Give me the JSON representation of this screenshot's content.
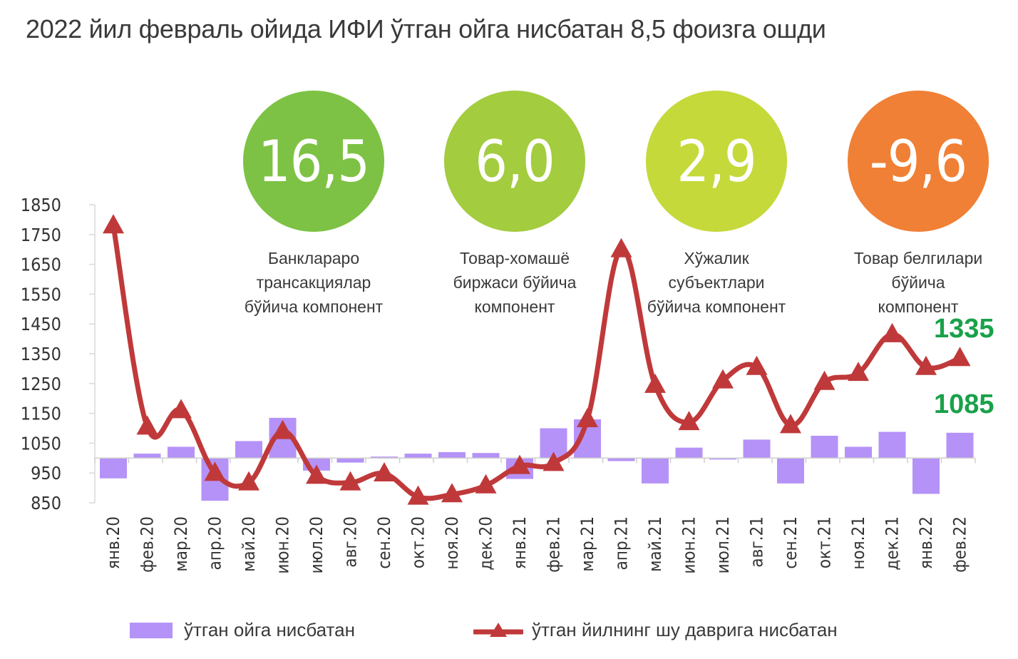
{
  "title": "2022 йил февраль ойида ИФИ ўтган ойга нисбатан 8,5 фоизга ошди",
  "kpis": [
    {
      "value": "16,5",
      "label": "Банклараро\nтрансакциялар\nбўйича компонент",
      "color": "#7dc244"
    },
    {
      "value": "6,0",
      "label": "Товар-хомашё\nбиржаси бўйича\nкомпонент",
      "color": "#a3cc3f"
    },
    {
      "value": "2,9",
      "label": "Хўжалик\nсубъектлари\nбўйича компонент",
      "color": "#c5d93a"
    },
    {
      "value": "-9,6",
      "label": "Товар белгилари\nбўйича\nкомпонент",
      "color": "#f08035"
    }
  ],
  "callouts": {
    "line_last": "1335",
    "bar_last": "1085"
  },
  "legend": {
    "bars": "ўтган ойга нисбатан",
    "line": "ўтган йилнинг шу даврига нисбатан"
  },
  "colors": {
    "bars": "#b592f7",
    "line": "#c0393a",
    "callout": "#1aa14a"
  },
  "chart_data": {
    "type": "bar+line",
    "categories": [
      "янв.20",
      "фев.20",
      "мар.20",
      "апр.20",
      "май.20",
      "июн.20",
      "июл.20",
      "авг.20",
      "сен.20",
      "окт.20",
      "ноя.20",
      "дек.20",
      "янв.21",
      "фев.21",
      "мар.21",
      "апр.21",
      "май.21",
      "июн.21",
      "июл.21",
      "авг.21",
      "сен.21",
      "окт.21",
      "ноя.21",
      "дек.21",
      "янв.22",
      "фев.22"
    ],
    "y_ticks": [
      850,
      950,
      1050,
      1150,
      1250,
      1350,
      1450,
      1550,
      1650,
      1750,
      1850
    ],
    "ylim": [
      850,
      1850
    ],
    "bar_baseline": 1000,
    "series": [
      {
        "name": "ўтган ойга нисбатан",
        "type": "bar",
        "values": [
          932,
          1015,
          1038,
          857,
          1057,
          1135,
          958,
          985,
          1005,
          1015,
          1020,
          1017,
          930,
          1100,
          1130,
          990,
          915,
          1035,
          1000,
          1062,
          915,
          1075,
          1038,
          1088,
          880,
          1085
        ]
      },
      {
        "name": "ўтган йилнинг шу даврига нисбатан",
        "type": "line",
        "values": [
          1780,
          1105,
          1160,
          950,
          918,
          1090,
          940,
          918,
          948,
          870,
          878,
          908,
          973,
          983,
          1130,
          1700,
          1245,
          1120,
          1260,
          1305,
          1110,
          1255,
          1285,
          1415,
          1305,
          1335
        ]
      }
    ]
  }
}
